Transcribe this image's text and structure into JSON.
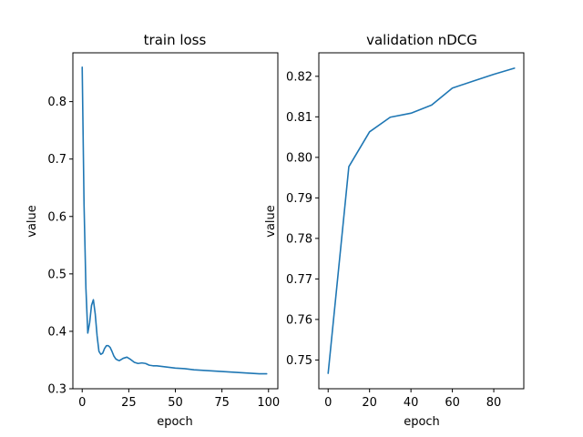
{
  "chart_data": [
    {
      "type": "line",
      "title": "train loss",
      "xlabel": "epoch",
      "ylabel": "value",
      "xlim": [
        -5,
        105
      ],
      "ylim": [
        0.3,
        0.885
      ],
      "xticks": [
        0,
        25,
        50,
        75,
        100
      ],
      "yticks": [
        0.3,
        0.4,
        0.5,
        0.6,
        0.7,
        0.8
      ],
      "grid": false,
      "series": [
        {
          "color": "#1f77b4",
          "x": [
            0,
            1,
            2,
            3,
            4,
            5,
            6,
            7,
            8,
            9,
            10,
            11,
            12,
            13,
            14,
            15,
            16,
            17,
            18,
            19,
            20,
            22,
            24,
            26,
            28,
            30,
            32,
            34,
            36,
            38,
            40,
            45,
            50,
            55,
            60,
            65,
            70,
            75,
            80,
            85,
            90,
            95,
            99
          ],
          "y": [
            0.86,
            0.62,
            0.475,
            0.397,
            0.415,
            0.445,
            0.455,
            0.43,
            0.392,
            0.365,
            0.36,
            0.362,
            0.37,
            0.375,
            0.375,
            0.372,
            0.365,
            0.357,
            0.352,
            0.35,
            0.349,
            0.353,
            0.355,
            0.351,
            0.346,
            0.344,
            0.345,
            0.344,
            0.341,
            0.34,
            0.34,
            0.338,
            0.336,
            0.335,
            0.333,
            0.332,
            0.331,
            0.33,
            0.329,
            0.328,
            0.327,
            0.326,
            0.326
          ]
        }
      ]
    },
    {
      "type": "line",
      "title": "validation nDCG",
      "xlabel": "epoch",
      "ylabel": "value",
      "xlim": [
        -4.5,
        94.5
      ],
      "ylim": [
        0.7429,
        0.8258
      ],
      "xticks": [
        0,
        20,
        40,
        60,
        80
      ],
      "yticks": [
        0.75,
        0.76,
        0.77,
        0.78,
        0.79,
        0.8,
        0.81,
        0.82
      ],
      "grid": false,
      "series": [
        {
          "color": "#1f77b4",
          "x": [
            0,
            10,
            20,
            30,
            40,
            50,
            60,
            70,
            80,
            90
          ],
          "y": [
            0.7467,
            0.7977,
            0.8063,
            0.8099,
            0.8109,
            0.8129,
            0.8171,
            0.8188,
            0.8205,
            0.822
          ]
        }
      ]
    }
  ]
}
